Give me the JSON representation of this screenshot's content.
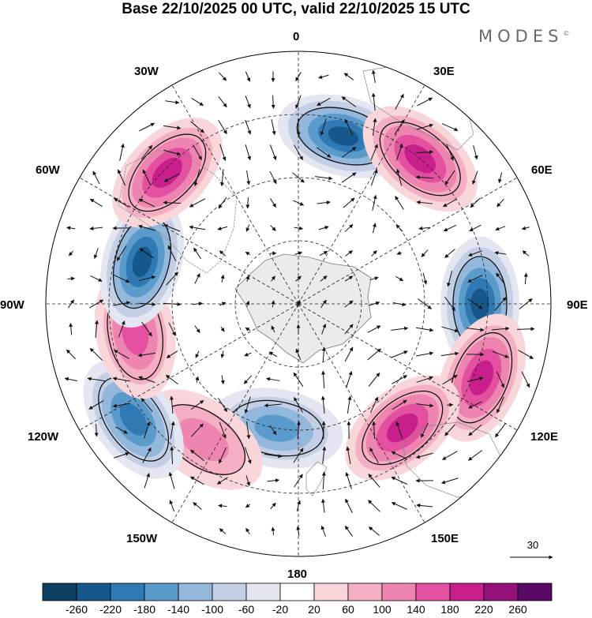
{
  "title": "Base 22/10/2025 00 UTC, valid 22/10/2025 15 UTC",
  "brand": {
    "name": "MODES",
    "mark": "©"
  },
  "map": {
    "projection": "south-polar-stereographic",
    "longitude_labels": {
      "lon_0": "0",
      "lon_30e": "30E",
      "lon_60e": "60E",
      "lon_90e": "90E",
      "lon_120e": "120E",
      "lon_150e": "150E",
      "lon_180": "180",
      "lon_150w": "150W",
      "lon_120w": "120W",
      "lon_90w": "90W",
      "lon_60w": "60W",
      "lon_30w": "30W"
    },
    "anomaly_centers": [
      {
        "name": "anomaly-negative-0",
        "lon": 15,
        "value": -260
      },
      {
        "name": "anomaly-positive-30e",
        "lon": 40,
        "value": 220
      },
      {
        "name": "anomaly-negative-90e",
        "lon": 90,
        "value": -240
      },
      {
        "name": "anomaly-positive-110e",
        "lon": 112,
        "value": 200
      },
      {
        "name": "anomaly-positive-140e",
        "lon": 140,
        "value": 200
      },
      {
        "name": "anomaly-negative-170w",
        "lon": -170,
        "value": -160
      },
      {
        "name": "anomaly-positive-150w",
        "lon": -145,
        "value": 140
      },
      {
        "name": "anomaly-negative-125w",
        "lon": -125,
        "value": -200
      },
      {
        "name": "anomaly-positive-100w",
        "lon": -100,
        "value": 180
      },
      {
        "name": "anomaly-negative-75w",
        "lon": -75,
        "value": -260
      },
      {
        "name": "anomaly-positive-45w",
        "lon": -45,
        "value": 200
      }
    ]
  },
  "wind_reference": {
    "label": "30"
  },
  "colorbar": {
    "colors": [
      "#0d3f63",
      "#17588c",
      "#2f79b4",
      "#5a9bcc",
      "#94b7dc",
      "#c4cfe6",
      "#e4e6f2",
      "#ffffff",
      "#f9d6d9",
      "#f4b0c2",
      "#ee85b1",
      "#e2509f",
      "#c81f8c",
      "#931078",
      "#5a0866"
    ],
    "labels": [
      "-260",
      "-220",
      "-180",
      "-140",
      "-100",
      "-60",
      "-20",
      "20",
      "60",
      "100",
      "140",
      "180",
      "220",
      "260"
    ]
  }
}
